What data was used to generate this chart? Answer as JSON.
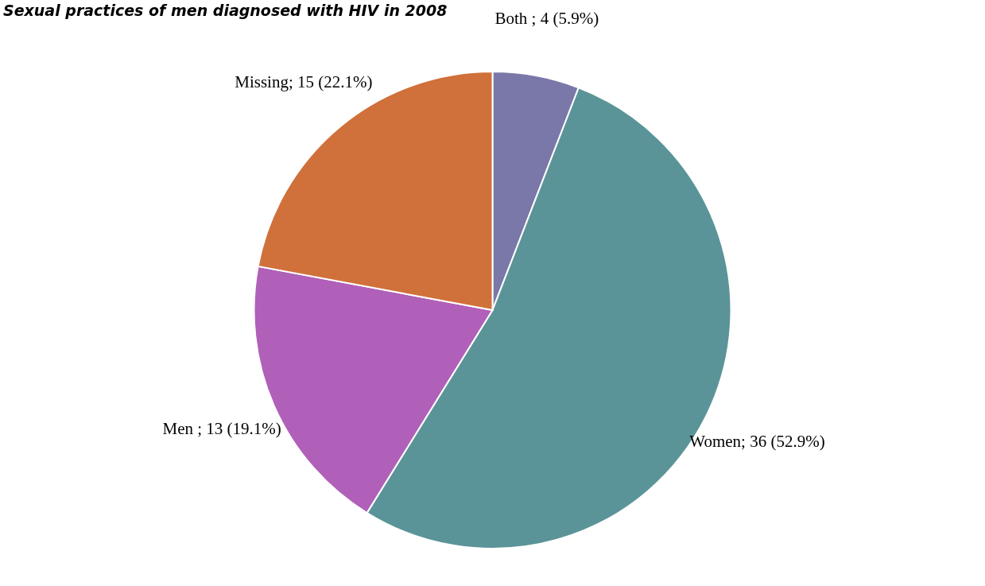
{
  "chart_data": {
    "type": "pie",
    "title": "Sexual practices of men diagnosed with HIV in 2008",
    "categories": [
      "Both",
      "Women",
      "Men",
      "Missing"
    ],
    "values": [
      4,
      36,
      13,
      15
    ],
    "colors": [
      "#7a78a8",
      "#5a9498",
      "#b060b8",
      "#d0703a"
    ],
    "value_labels": [
      " ; 4 (5.9%)",
      "; 36 (52.9%)",
      " ; 13 (19.1%)",
      "; 15 (22.1%)"
    ]
  }
}
